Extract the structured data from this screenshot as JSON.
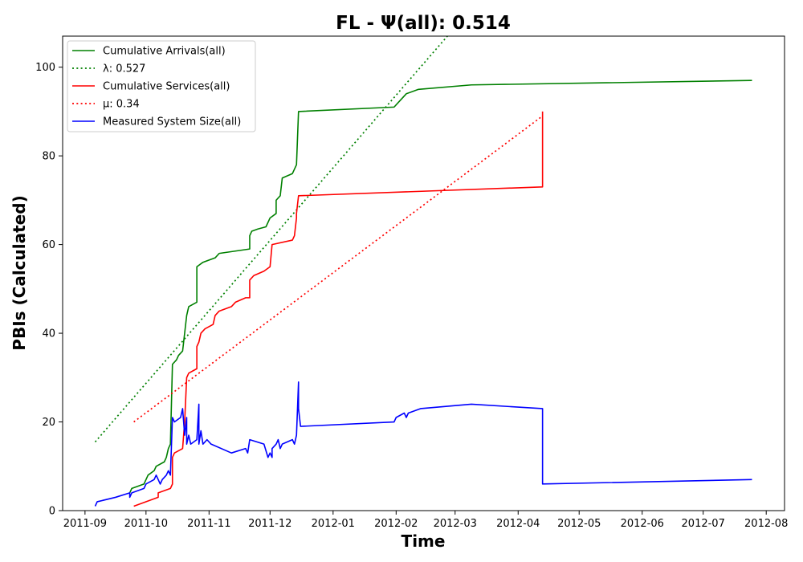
{
  "chart_data": {
    "type": "line",
    "title": "FL -  Ψ(all): 0.514",
    "xlabel": "Time",
    "ylabel": "PBIs (Calculated)",
    "xlim": [
      "2011-08-21",
      "2012-08-10"
    ],
    "ylim": [
      0,
      107
    ],
    "grid": false,
    "legend_position": "upper-left",
    "x_ticks": [
      "2011-09",
      "2011-10",
      "2011-11",
      "2011-12",
      "2012-01",
      "2012-02",
      "2012-03",
      "2012-04",
      "2012-05",
      "2012-06",
      "2012-07",
      "2012-08"
    ],
    "y_ticks": [
      0,
      20,
      40,
      60,
      80,
      100
    ],
    "series": [
      {
        "name": "Cumulative Arrivals(all)",
        "color": "#008000",
        "style": "solid",
        "points": [
          [
            "2011-09-23",
            4
          ],
          [
            "2011-09-24",
            5
          ],
          [
            "2011-09-30",
            6
          ],
          [
            "2011-10-02",
            8
          ],
          [
            "2011-10-05",
            9
          ],
          [
            "2011-10-06",
            10
          ],
          [
            "2011-10-10",
            11
          ],
          [
            "2011-10-11",
            12
          ],
          [
            "2011-10-12",
            14
          ],
          [
            "2011-10-13",
            15
          ],
          [
            "2011-10-14",
            33
          ],
          [
            "2011-10-16",
            34
          ],
          [
            "2011-10-17",
            35
          ],
          [
            "2011-10-19",
            36
          ],
          [
            "2011-10-20",
            40
          ],
          [
            "2011-10-21",
            44
          ],
          [
            "2011-10-22",
            46
          ],
          [
            "2011-10-24",
            46.5
          ],
          [
            "2011-10-26",
            47
          ],
          [
            "2011-10-26",
            55
          ],
          [
            "2011-10-29",
            56
          ],
          [
            "2011-11-04",
            57
          ],
          [
            "2011-11-06",
            58
          ],
          [
            "2011-11-21",
            59
          ],
          [
            "2011-11-21",
            62
          ],
          [
            "2011-11-22",
            63
          ],
          [
            "2011-11-25",
            63.5
          ],
          [
            "2011-11-29",
            64
          ],
          [
            "2011-12-01",
            66
          ],
          [
            "2011-12-04",
            67
          ],
          [
            "2011-12-04",
            70
          ],
          [
            "2011-12-06",
            71
          ],
          [
            "2011-12-07",
            75
          ],
          [
            "2011-12-12",
            76
          ],
          [
            "2011-12-13",
            77
          ],
          [
            "2011-12-14",
            78
          ],
          [
            "2011-12-15",
            90
          ],
          [
            "2012-01-31",
            91
          ],
          [
            "2012-02-02",
            92
          ],
          [
            "2012-02-04",
            93
          ],
          [
            "2012-02-06",
            94
          ],
          [
            "2012-02-12",
            95
          ],
          [
            "2012-03-09",
            96
          ],
          [
            "2012-07-25",
            97
          ]
        ]
      },
      {
        "name": "λ: 0.527",
        "color": "#008000",
        "style": "dotted",
        "points": [
          [
            "2011-09-06",
            15.5
          ],
          [
            "2012-03-01",
            109
          ]
        ]
      },
      {
        "name": "Cumulative Services(all)",
        "color": "#ff0000",
        "style": "solid",
        "points": [
          [
            "2011-09-25",
            1
          ],
          [
            "2011-10-07",
            3
          ],
          [
            "2011-10-07",
            4
          ],
          [
            "2011-10-13",
            5
          ],
          [
            "2011-10-14",
            6
          ],
          [
            "2011-10-14",
            12
          ],
          [
            "2011-10-15",
            13
          ],
          [
            "2011-10-17",
            13.5
          ],
          [
            "2011-10-19",
            14
          ],
          [
            "2011-10-20",
            20
          ],
          [
            "2011-10-21",
            30
          ],
          [
            "2011-10-22",
            31
          ],
          [
            "2011-10-24",
            31.5
          ],
          [
            "2011-10-26",
            32
          ],
          [
            "2011-10-26",
            37
          ],
          [
            "2011-10-27",
            38
          ],
          [
            "2011-10-28",
            40
          ],
          [
            "2011-10-30",
            41
          ],
          [
            "2011-11-03",
            42
          ],
          [
            "2011-11-04",
            44
          ],
          [
            "2011-11-06",
            45
          ],
          [
            "2011-11-12",
            46
          ],
          [
            "2011-11-14",
            47
          ],
          [
            "2011-11-19",
            48
          ],
          [
            "2011-11-21",
            48
          ],
          [
            "2011-11-21",
            52
          ],
          [
            "2011-11-23",
            53
          ],
          [
            "2011-11-28",
            54
          ],
          [
            "2011-12-01",
            55
          ],
          [
            "2011-12-02",
            60
          ],
          [
            "2011-12-12",
            61
          ],
          [
            "2011-12-13",
            62
          ],
          [
            "2011-12-14",
            66
          ],
          [
            "2011-12-14",
            67
          ],
          [
            "2011-12-15",
            71
          ],
          [
            "2012-04-13",
            73
          ],
          [
            "2012-04-13",
            90
          ]
        ]
      },
      {
        "name": "μ: 0.34",
        "color": "#ff0000",
        "style": "dotted",
        "points": [
          [
            "2011-09-25",
            20
          ],
          [
            "2012-04-13",
            89
          ]
        ]
      },
      {
        "name": "Measured System Size(all)",
        "color": "#0000ff",
        "style": "solid",
        "points": [
          [
            "2011-09-06",
            1
          ],
          [
            "2011-09-07",
            2
          ],
          [
            "2011-09-16",
            3
          ],
          [
            "2011-09-23",
            4
          ],
          [
            "2011-09-23",
            3
          ],
          [
            "2011-09-24",
            4
          ],
          [
            "2011-09-30",
            5
          ],
          [
            "2011-10-01",
            6
          ],
          [
            "2011-10-05",
            7
          ],
          [
            "2011-10-06",
            8
          ],
          [
            "2011-10-07",
            7
          ],
          [
            "2011-10-08",
            6
          ],
          [
            "2011-10-09",
            7
          ],
          [
            "2011-10-11",
            8
          ],
          [
            "2011-10-12",
            9
          ],
          [
            "2011-10-13",
            8
          ],
          [
            "2011-10-14",
            21
          ],
          [
            "2011-10-15",
            20
          ],
          [
            "2011-10-18",
            21
          ],
          [
            "2011-10-19",
            23
          ],
          [
            "2011-10-20",
            17
          ],
          [
            "2011-10-21",
            21
          ],
          [
            "2011-10-21",
            15
          ],
          [
            "2011-10-22",
            17
          ],
          [
            "2011-10-23",
            15
          ],
          [
            "2011-10-26",
            16
          ],
          [
            "2011-10-27",
            24
          ],
          [
            "2011-10-27",
            15
          ],
          [
            "2011-10-28",
            18
          ],
          [
            "2011-10-29",
            15
          ],
          [
            "2011-10-31",
            16
          ],
          [
            "2011-11-02",
            15
          ],
          [
            "2011-11-12",
            13
          ],
          [
            "2011-11-19",
            14
          ],
          [
            "2011-11-20",
            13
          ],
          [
            "2011-11-21",
            16
          ],
          [
            "2011-11-28",
            15
          ],
          [
            "2011-11-30",
            12
          ],
          [
            "2011-12-01",
            13
          ],
          [
            "2011-12-02",
            12
          ],
          [
            "2011-12-02",
            14
          ],
          [
            "2011-12-04",
            15
          ],
          [
            "2011-12-05",
            16
          ],
          [
            "2011-12-06",
            14
          ],
          [
            "2011-12-07",
            15
          ],
          [
            "2011-12-12",
            16
          ],
          [
            "2011-12-13",
            15
          ],
          [
            "2011-12-14",
            17
          ],
          [
            "2011-12-15",
            29
          ],
          [
            "2011-12-15",
            23
          ],
          [
            "2011-12-16",
            19
          ],
          [
            "2012-01-31",
            20
          ],
          [
            "2012-02-01",
            21
          ],
          [
            "2012-02-05",
            22
          ],
          [
            "2012-02-06",
            21
          ],
          [
            "2012-02-07",
            22
          ],
          [
            "2012-02-13",
            23
          ],
          [
            "2012-03-09",
            24
          ],
          [
            "2012-04-13",
            23
          ],
          [
            "2012-04-13",
            6
          ],
          [
            "2012-07-25",
            7
          ]
        ]
      }
    ]
  }
}
